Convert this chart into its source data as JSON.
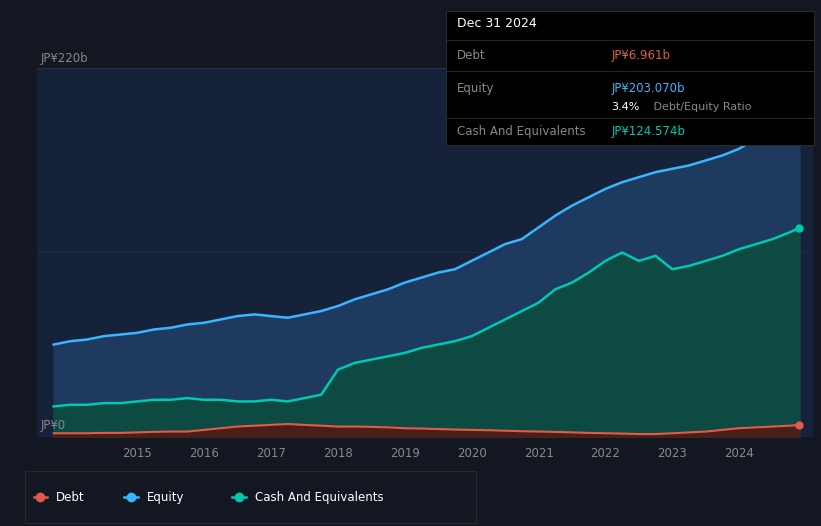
{
  "bg_color": "#131722",
  "plot_bg_color": "#16213a",
  "grid_color": "#2a3550",
  "title_box": {
    "date": "Dec 31 2024",
    "debt_label": "Debt",
    "debt_value": "JP¥6.961b",
    "debt_color": "#e05c4a",
    "equity_label": "Equity",
    "equity_value": "JP¥203.070b",
    "equity_color": "#38b6ff",
    "ratio_value": "3.4%",
    "ratio_text": " Debt/Equity Ratio",
    "cash_label": "Cash And Equivalents",
    "cash_value": "JP¥124.574b",
    "cash_color": "#00c9b1",
    "box_bg": "#000000",
    "border_color": "#2a2a2a",
    "label_color": "#888888"
  },
  "y_label_top": "JP¥220b",
  "y_label_bottom": "JP¥0",
  "x_ticks": [
    "2015",
    "2016",
    "2017",
    "2018",
    "2019",
    "2020",
    "2021",
    "2022",
    "2023",
    "2024"
  ],
  "x_tick_pos": [
    2015,
    2016,
    2017,
    2018,
    2019,
    2020,
    2021,
    2022,
    2023,
    2024
  ],
  "equity_color": "#38b6ff",
  "equity_fill": "#1e3a5f",
  "debt_color": "#e05c4a",
  "debt_fill": "#4a1f1a",
  "cash_color": "#00c9b1",
  "cash_fill": "#0d4a42",
  "years": [
    2013.75,
    2014.0,
    2014.25,
    2014.5,
    2014.75,
    2015.0,
    2015.25,
    2015.5,
    2015.75,
    2016.0,
    2016.25,
    2016.5,
    2016.75,
    2017.0,
    2017.25,
    2017.5,
    2017.75,
    2018.0,
    2018.25,
    2018.5,
    2018.75,
    2019.0,
    2019.25,
    2019.5,
    2019.75,
    2020.0,
    2020.25,
    2020.5,
    2020.75,
    2021.0,
    2021.25,
    2021.5,
    2021.75,
    2022.0,
    2022.25,
    2022.5,
    2022.75,
    2023.0,
    2023.25,
    2023.5,
    2023.75,
    2024.0,
    2024.25,
    2024.5,
    2024.75,
    2024.9
  ],
  "equity_values": [
    55,
    57,
    58,
    60,
    61,
    62,
    64,
    65,
    67,
    68,
    70,
    72,
    73,
    72,
    71,
    73,
    75,
    78,
    82,
    85,
    88,
    92,
    95,
    98,
    100,
    105,
    110,
    115,
    118,
    125,
    132,
    138,
    143,
    148,
    152,
    155,
    158,
    160,
    162,
    165,
    168,
    172,
    178,
    185,
    195,
    203
  ],
  "cash_values": [
    18,
    19,
    19,
    20,
    20,
    21,
    22,
    22,
    23,
    22,
    22,
    21,
    21,
    22,
    21,
    23,
    25,
    40,
    44,
    46,
    48,
    50,
    53,
    55,
    57,
    60,
    65,
    70,
    75,
    80,
    88,
    92,
    98,
    105,
    110,
    105,
    108,
    100,
    102,
    105,
    108,
    112,
    115,
    118,
    122,
    124.5
  ],
  "debt_values": [
    2.0,
    2.0,
    2.0,
    2.2,
    2.2,
    2.5,
    2.8,
    3.0,
    3.0,
    4.0,
    5.0,
    6.0,
    6.5,
    7.0,
    7.5,
    7.0,
    6.5,
    6.0,
    6.0,
    5.8,
    5.5,
    5.0,
    4.8,
    4.5,
    4.2,
    4.0,
    3.8,
    3.5,
    3.2,
    3.0,
    2.8,
    2.5,
    2.2,
    2.0,
    1.8,
    1.5,
    1.5,
    2.0,
    2.5,
    3.0,
    4.0,
    5.0,
    5.5,
    6.0,
    6.5,
    6.961
  ],
  "ylim": [
    0,
    220
  ],
  "xlim_start": 2013.5,
  "xlim_end": 2025.1
}
